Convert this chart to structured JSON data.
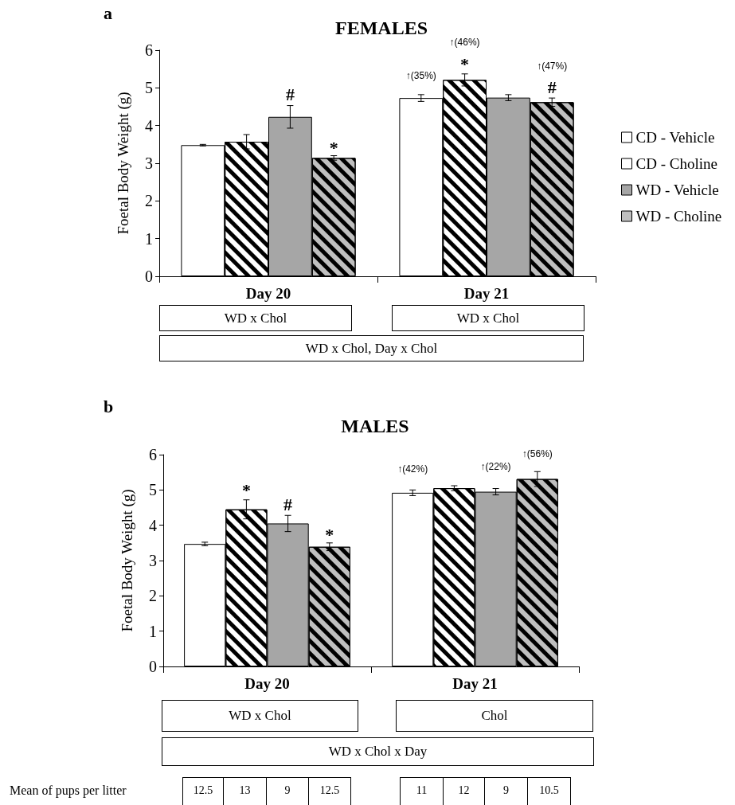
{
  "chart_data": [
    {
      "type": "bar",
      "title": "FEMALES",
      "ylabel": "Foetal Body Weight (g)",
      "categories": [
        "Day 20",
        "Day 21"
      ],
      "series": [
        {
          "name": "CD - Vehicle",
          "color": "#ffffff",
          "values": [
            3.48,
            4.73
          ],
          "errors": [
            0.02,
            0.09
          ]
        },
        {
          "name": "CD - Choline",
          "color": "#ffffff",
          "values": [
            3.57,
            5.21
          ],
          "errors": [
            0.19,
            0.16
          ]
        },
        {
          "name": "WD - Vehicle",
          "color": "#a6a6a6",
          "values": [
            4.23,
            4.74
          ],
          "errors": [
            0.3,
            0.08
          ]
        },
        {
          "name": "WD - Choline",
          "color": "#bfbfbf",
          "values": [
            3.14,
            4.62
          ],
          "errors": [
            0.06,
            0.11
          ]
        }
      ],
      "ylim": [
        0,
        6
      ],
      "yticks": [
        0,
        1,
        2,
        3,
        4,
        5,
        6
      ],
      "grid": false,
      "legend": "right",
      "annotations": [
        "a",
        "WD x Chol",
        "WD x Chol",
        "WD x Chol, Day x Chol",
        "#",
        "*",
        "↑(35%)",
        "↑(46%)",
        "*",
        "↑(47%)",
        "#"
      ]
    },
    {
      "type": "bar",
      "title": "MALES",
      "ylabel": "Foetal Body Weight (g)",
      "categories": [
        "Day 20",
        "Day 21"
      ],
      "series": [
        {
          "color": "#ffffff",
          "values": [
            3.47,
            4.92
          ],
          "errors": [
            0.05,
            0.08
          ]
        },
        {
          "color": "#ffffff",
          "values": [
            4.45,
            5.05
          ],
          "errors": [
            0.27,
            0.07
          ]
        },
        {
          "color": "#a6a6a6",
          "values": [
            4.05,
            4.95
          ],
          "errors": [
            0.23,
            0.09
          ]
        },
        {
          "color": "#bfbfbf",
          "values": [
            3.39,
            5.31
          ],
          "errors": [
            0.11,
            0.21
          ]
        }
      ],
      "ylim": [
        0,
        6
      ],
      "yticks": [
        0,
        1,
        2,
        3,
        4,
        5,
        6
      ],
      "grid": false,
      "legend": false,
      "annotations": [
        "b",
        "WD x Chol",
        "Chol",
        "WD x Chol x Day",
        "Mean of pups per litter",
        "12.5",
        "13",
        "9",
        "12.5",
        "11",
        "12",
        "9",
        "10.5",
        "*",
        "#",
        "*",
        "↑(42%)",
        "↑(22%)",
        "↑(56%)"
      ]
    }
  ]
}
